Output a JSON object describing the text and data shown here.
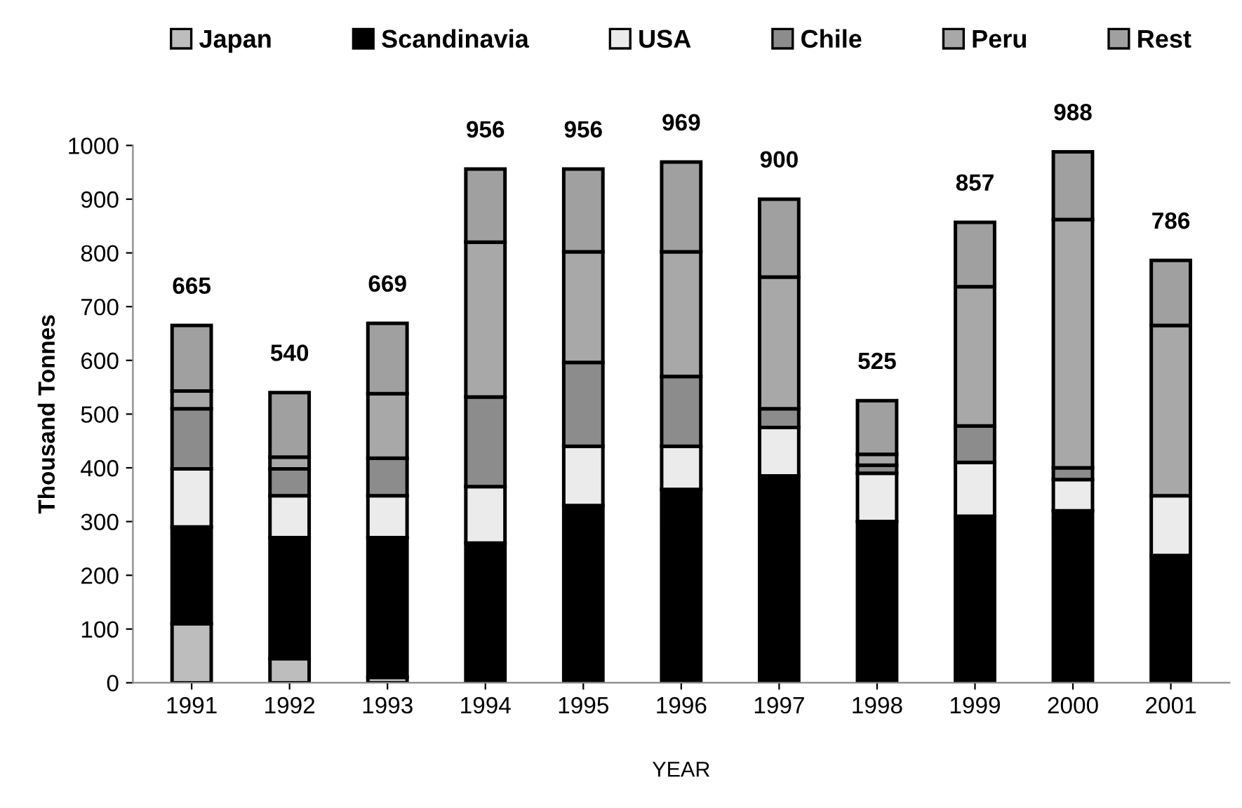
{
  "chart_data": {
    "type": "bar",
    "stacked": true,
    "xlabel": "YEAR",
    "ylabel": "Thousand Tonnes",
    "categories": [
      "1991",
      "1992",
      "1993",
      "1994",
      "1995",
      "1996",
      "1997",
      "1998",
      "1999",
      "2000",
      "2001"
    ],
    "series": [
      {
        "name": "Japan",
        "color": "#bdbdbd",
        "values": [
          110,
          45,
          10,
          0,
          0,
          0,
          0,
          0,
          0,
          0,
          0
        ]
      },
      {
        "name": "Scandinavia",
        "color": "#000000",
        "values": [
          180,
          225,
          260,
          260,
          330,
          360,
          385,
          300,
          310,
          320,
          237
        ]
      },
      {
        "name": "USA",
        "color": "#ebebeb",
        "values": [
          108,
          78,
          78,
          105,
          110,
          80,
          90,
          90,
          100,
          58,
          111
        ]
      },
      {
        "name": "Chile",
        "color": "#8c8c8c",
        "values": [
          112,
          50,
          70,
          167,
          156,
          130,
          35,
          15,
          68,
          22,
          0
        ]
      },
      {
        "name": "Peru",
        "color": "#a8a8a8",
        "values": [
          33,
          22,
          120,
          288,
          206,
          232,
          245,
          20,
          259,
          462,
          317
        ]
      },
      {
        "name": "Rest",
        "color": "#a0a0a0",
        "values": [
          122,
          120,
          131,
          136,
          154,
          167,
          145,
          100,
          120,
          126,
          121
        ]
      }
    ],
    "totals": [
      "665",
      "540",
      "669",
      "956",
      "956",
      "969",
      "900",
      "525",
      "857",
      "988",
      "786"
    ],
    "ylim": [
      0,
      1000
    ],
    "yticks": [
      0,
      100,
      200,
      300,
      400,
      500,
      600,
      700,
      800,
      900,
      1000
    ],
    "grid": false,
    "legend": "top"
  }
}
